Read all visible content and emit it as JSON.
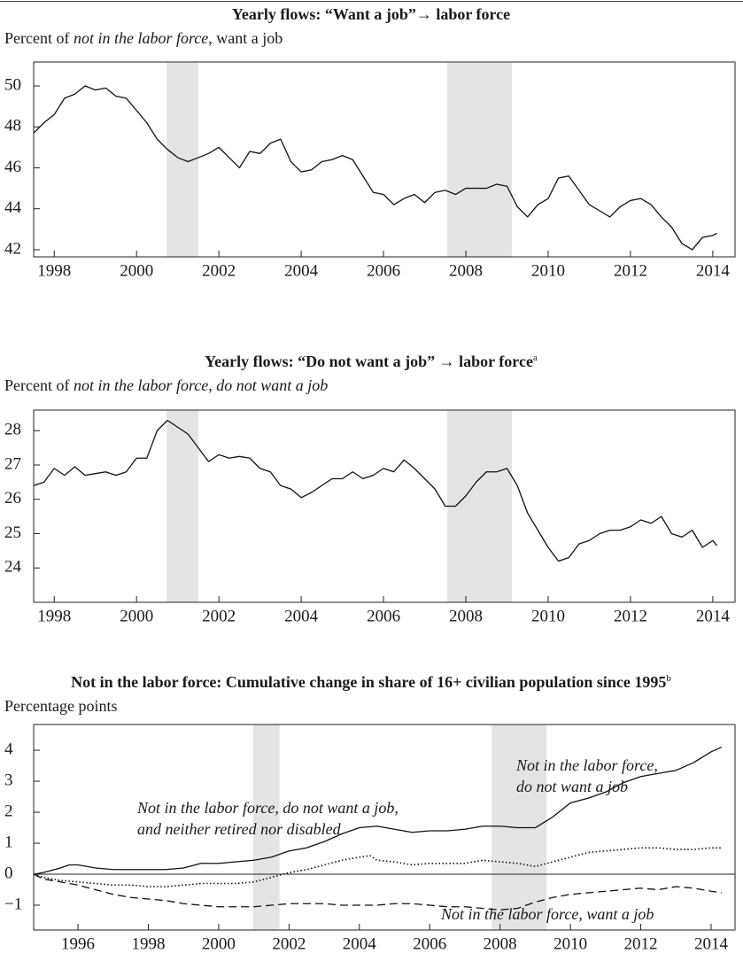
{
  "chart_data": [
    {
      "type": "line",
      "title": "Yearly flows: “Want a job”→ labor force",
      "subtitle": [
        "Percent of ",
        "not in the labor force",
        ", want a job"
      ],
      "xlim": [
        1997.5,
        2014.54
      ],
      "ylim": [
        41.65,
        51.17
      ],
      "xticks": [
        1998,
        2000,
        2002,
        2004,
        2006,
        2008,
        2010,
        2012,
        2014
      ],
      "yticks": [
        42,
        44,
        46,
        48,
        50
      ],
      "shaded_ranges": [
        [
          2000.73,
          2001.5
        ],
        [
          2007.55,
          2009.12
        ]
      ],
      "shade_color": "#e3e4e3",
      "series": [
        {
          "color": "#111111",
          "style": "solid",
          "x": [
            1997.5,
            1997.75,
            1998,
            1998.25,
            1998.5,
            1998.75,
            1999,
            1999.25,
            1999.5,
            1999.75,
            2000,
            2000.25,
            2000.5,
            2000.75,
            2001,
            2001.25,
            2001.5,
            2001.75,
            2002,
            2002.25,
            2002.5,
            2002.75,
            2003,
            2003.25,
            2003.5,
            2003.75,
            2004,
            2004.25,
            2004.5,
            2004.75,
            2005,
            2005.25,
            2005.5,
            2005.75,
            2006,
            2006.25,
            2006.5,
            2006.75,
            2007,
            2007.25,
            2007.5,
            2007.75,
            2008,
            2008.25,
            2008.5,
            2008.75,
            2009,
            2009.25,
            2009.5,
            2009.75,
            2010,
            2010.25,
            2010.5,
            2010.75,
            2011,
            2011.25,
            2011.5,
            2011.75,
            2012,
            2012.25,
            2012.5,
            2012.75,
            2013,
            2013.25,
            2013.5,
            2013.75,
            2014,
            2014.1
          ],
          "values": [
            47.7,
            48.2,
            48.6,
            49.4,
            49.6,
            50.0,
            49.8,
            49.9,
            49.5,
            49.4,
            48.8,
            48.2,
            47.4,
            46.9,
            46.5,
            46.3,
            46.5,
            46.7,
            47.0,
            46.5,
            46.0,
            46.8,
            46.7,
            47.2,
            47.4,
            46.3,
            45.8,
            45.9,
            46.3,
            46.4,
            46.6,
            46.4,
            45.6,
            44.8,
            44.7,
            44.2,
            44.5,
            44.7,
            44.3,
            44.8,
            44.9,
            44.7,
            45.0,
            45.0,
            45.0,
            45.2,
            45.1,
            44.1,
            43.6,
            44.2,
            44.5,
            45.5,
            45.6,
            44.9,
            44.2,
            43.9,
            43.6,
            44.1,
            44.4,
            44.5,
            44.2,
            43.6,
            43.1,
            42.3,
            42.0,
            42.6,
            42.7,
            42.8
          ]
        }
      ]
    },
    {
      "type": "line",
      "title": "Yearly flows: “Do not want a job” → labor force",
      "title_note": "a",
      "subtitle": [
        "Percent of ",
        "not in the labor force",
        ", ",
        "do not want a job"
      ],
      "xlim": [
        1997.5,
        2014.54
      ],
      "ylim": [
        23.0,
        28.6
      ],
      "xticks": [
        1998,
        2000,
        2002,
        2004,
        2006,
        2008,
        2010,
        2012,
        2014
      ],
      "yticks": [
        24,
        25,
        26,
        27,
        28
      ],
      "shaded_ranges": [
        [
          2000.73,
          2001.5
        ],
        [
          2007.55,
          2009.12
        ]
      ],
      "shade_color": "#e3e4e3",
      "series": [
        {
          "color": "#111111",
          "style": "solid",
          "x": [
            1997.5,
            1997.75,
            1998,
            1998.25,
            1998.5,
            1998.75,
            1999,
            1999.25,
            1999.5,
            1999.75,
            2000,
            2000.25,
            2000.5,
            2000.75,
            2001,
            2001.25,
            2001.5,
            2001.75,
            2002,
            2002.25,
            2002.5,
            2002.75,
            2003,
            2003.25,
            2003.5,
            2003.75,
            2004,
            2004.25,
            2004.5,
            2004.75,
            2005,
            2005.25,
            2005.5,
            2005.75,
            2006,
            2006.25,
            2006.5,
            2006.75,
            2007,
            2007.25,
            2007.5,
            2007.75,
            2008,
            2008.25,
            2008.5,
            2008.75,
            2009,
            2009.25,
            2009.5,
            2009.75,
            2010,
            2010.25,
            2010.5,
            2010.75,
            2011,
            2011.25,
            2011.5,
            2011.75,
            2012,
            2012.25,
            2012.5,
            2012.75,
            2013,
            2013.25,
            2013.5,
            2013.75,
            2014,
            2014.1
          ],
          "values": [
            26.4,
            26.5,
            26.9,
            26.7,
            26.95,
            26.7,
            26.75,
            26.8,
            26.7,
            26.8,
            27.2,
            27.2,
            28.0,
            28.3,
            28.1,
            27.9,
            27.5,
            27.1,
            27.3,
            27.2,
            27.25,
            27.2,
            26.9,
            26.8,
            26.4,
            26.3,
            26.05,
            26.2,
            26.4,
            26.6,
            26.6,
            26.8,
            26.6,
            26.7,
            26.9,
            26.8,
            27.15,
            26.9,
            26.6,
            26.3,
            25.8,
            25.8,
            26.1,
            26.5,
            26.8,
            26.8,
            26.9,
            26.4,
            25.6,
            25.1,
            24.6,
            24.2,
            24.3,
            24.7,
            24.8,
            25.0,
            25.1,
            25.1,
            25.2,
            25.4,
            25.3,
            25.5,
            25.0,
            24.9,
            25.1,
            24.6,
            24.8,
            24.65
          ]
        }
      ]
    },
    {
      "type": "line",
      "title": "Not in the labor force: Cumulative change in share of 16+ civilian population since 1995",
      "title_note": "b",
      "subtitle": [
        "Percentage points"
      ],
      "xlim": [
        1994.74,
        2014.68
      ],
      "ylim": [
        -1.8,
        4.83
      ],
      "xticks": [
        1996,
        1998,
        2000,
        2002,
        2004,
        2006,
        2008,
        2010,
        2012,
        2014
      ],
      "yticks": [
        {
          "value": -1,
          "label": "−1"
        },
        0,
        1,
        2,
        3,
        4
      ],
      "zero_line": true,
      "shaded_ranges": [
        [
          2000.98,
          2001.73
        ],
        [
          2007.76,
          2009.32
        ]
      ],
      "shade_color": "#e3e4e3",
      "series": [
        {
          "name": "Not in the labor force, do not want a job",
          "color": "#111111",
          "style": "solid",
          "x": [
            1994.75,
            1995,
            1995.5,
            1995.75,
            1996,
            1996.5,
            1997,
            1997.5,
            1998,
            1998.5,
            1999,
            1999.5,
            2000,
            2000.5,
            2001,
            2001.5,
            2002,
            2002.5,
            2003,
            2003.5,
            2004,
            2004.5,
            2005,
            2005.5,
            2006,
            2006.5,
            2007,
            2007.5,
            2008,
            2008.5,
            2009,
            2009.5,
            2010,
            2010.5,
            2011,
            2011.5,
            2012,
            2012.5,
            2013,
            2013.5,
            2014,
            2014.3
          ],
          "values": [
            0,
            0.05,
            0.2,
            0.3,
            0.3,
            0.2,
            0.15,
            0.15,
            0.15,
            0.15,
            0.2,
            0.35,
            0.35,
            0.4,
            0.45,
            0.55,
            0.75,
            0.85,
            1.05,
            1.3,
            1.5,
            1.55,
            1.45,
            1.35,
            1.4,
            1.4,
            1.45,
            1.55,
            1.55,
            1.5,
            1.5,
            1.85,
            2.3,
            2.45,
            2.65,
            2.95,
            3.15,
            3.25,
            3.35,
            3.6,
            3.95,
            4.1
          ]
        },
        {
          "name": "Not in the labor force, do not want a job, and neither retired nor disabled",
          "color": "#111111",
          "style": "dotted",
          "x": [
            1994.75,
            1995,
            1995.5,
            1996,
            1996.5,
            1997,
            1997.5,
            1998,
            1998.5,
            1999,
            1999.5,
            2000,
            2000.5,
            2001,
            2001.5,
            2002,
            2002.5,
            2003,
            2003.5,
            2004,
            2004.3,
            2004.5,
            2005,
            2005.5,
            2006,
            2006.5,
            2007,
            2007.5,
            2008,
            2008.5,
            2009,
            2009.5,
            2010,
            2010.5,
            2011,
            2011.5,
            2012,
            2012.5,
            2013,
            2013.5,
            2014,
            2014.3
          ],
          "values": [
            0,
            -0.1,
            -0.2,
            -0.25,
            -0.3,
            -0.35,
            -0.35,
            -0.4,
            -0.4,
            -0.35,
            -0.3,
            -0.3,
            -0.3,
            -0.25,
            -0.1,
            0.05,
            0.15,
            0.3,
            0.45,
            0.55,
            0.6,
            0.45,
            0.4,
            0.3,
            0.35,
            0.35,
            0.35,
            0.45,
            0.4,
            0.35,
            0.25,
            0.4,
            0.55,
            0.7,
            0.75,
            0.8,
            0.85,
            0.85,
            0.8,
            0.8,
            0.85,
            0.85
          ]
        },
        {
          "name": "Not in the labor force, want a job",
          "color": "#111111",
          "style": "dashed",
          "x": [
            1994.75,
            1995,
            1995.5,
            1996,
            1996.5,
            1997,
            1997.5,
            1998,
            1998.5,
            1999,
            1999.5,
            2000,
            2000.5,
            2001,
            2001.5,
            2002,
            2002.5,
            2003,
            2003.5,
            2004,
            2004.5,
            2005,
            2005.5,
            2006,
            2006.5,
            2007,
            2007.5,
            2008,
            2008.5,
            2009,
            2009.5,
            2010,
            2010.5,
            2011,
            2011.5,
            2012,
            2012.5,
            2013,
            2013.5,
            2014,
            2014.3
          ],
          "values": [
            0,
            -0.15,
            -0.25,
            -0.35,
            -0.5,
            -0.65,
            -0.75,
            -0.8,
            -0.85,
            -0.95,
            -1.0,
            -1.05,
            -1.05,
            -1.05,
            -1.0,
            -0.95,
            -0.95,
            -0.95,
            -1.0,
            -1.0,
            -1.0,
            -0.95,
            -0.95,
            -1.0,
            -1.05,
            -1.05,
            -1.1,
            -1.15,
            -1.1,
            -0.9,
            -0.75,
            -0.65,
            -0.6,
            -0.55,
            -0.5,
            -0.45,
            -0.5,
            -0.4,
            -0.45,
            -0.55,
            -0.6
          ]
        }
      ]
    }
  ]
}
